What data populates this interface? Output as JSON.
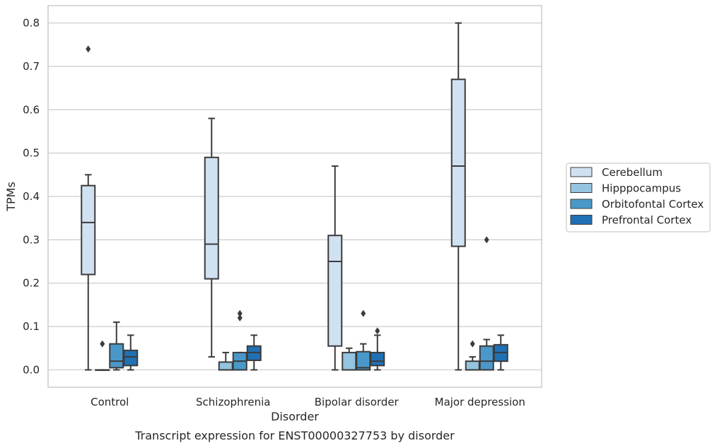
{
  "chart_data": {
    "type": "box",
    "title": "",
    "caption": "Transcript expression for ENST00000327753 by disorder",
    "xlabel": "Disorder",
    "ylabel": "TPMs",
    "ylim": [
      -0.04,
      0.84
    ],
    "yticks": [
      "0.0",
      "0.1",
      "0.2",
      "0.3",
      "0.4",
      "0.5",
      "0.6",
      "0.7",
      "0.8"
    ],
    "categories": [
      "Control",
      "Schizophrenia",
      "Bipolar disorder",
      "Major depression"
    ],
    "grid": "horizontal",
    "legend_position": "right-center",
    "series": [
      {
        "name": "Cerebellum",
        "color": "#d0e1f2",
        "boxes": [
          {
            "min": 0.0,
            "q1": 0.22,
            "median": 0.34,
            "q3": 0.425,
            "max": 0.45,
            "outliers": [
              0.74
            ]
          },
          {
            "min": 0.03,
            "q1": 0.21,
            "median": 0.29,
            "q3": 0.49,
            "max": 0.58,
            "outliers": []
          },
          {
            "min": 0.0,
            "q1": 0.055,
            "median": 0.25,
            "q3": 0.31,
            "max": 0.47,
            "outliers": []
          },
          {
            "min": 0.0,
            "q1": 0.285,
            "median": 0.47,
            "q3": 0.67,
            "max": 0.8,
            "outliers": []
          }
        ]
      },
      {
        "name": "Hipppocampus",
        "color": "#94c4df",
        "boxes": [
          {
            "min": 0.0,
            "q1": 0.0,
            "median": 0.0,
            "q3": 0.0,
            "max": 0.0,
            "outliers": [
              0.06
            ]
          },
          {
            "min": 0.0,
            "q1": 0.0,
            "median": 0.0,
            "q3": 0.018,
            "max": 0.04,
            "outliers": []
          },
          {
            "min": 0.0,
            "q1": 0.0,
            "median": 0.0,
            "q3": 0.04,
            "max": 0.05,
            "outliers": []
          },
          {
            "min": 0.0,
            "q1": 0.0,
            "median": 0.0,
            "q3": 0.02,
            "max": 0.03,
            "outliers": [
              0.06
            ]
          }
        ]
      },
      {
        "name": "Orbitofontal Cortex",
        "color": "#4a98c9",
        "boxes": [
          {
            "min": 0.0,
            "q1": 0.005,
            "median": 0.02,
            "q3": 0.06,
            "max": 0.11,
            "outliers": []
          },
          {
            "min": 0.0,
            "q1": 0.0,
            "median": 0.02,
            "q3": 0.04,
            "max": 0.04,
            "outliers": [
              0.12,
              0.13
            ]
          },
          {
            "min": 0.0,
            "q1": 0.0,
            "median": 0.005,
            "q3": 0.042,
            "max": 0.06,
            "outliers": [
              0.13
            ]
          },
          {
            "min": 0.0,
            "q1": 0.0,
            "median": 0.02,
            "q3": 0.055,
            "max": 0.07,
            "outliers": [
              0.3
            ]
          }
        ]
      },
      {
        "name": "Prefrontal Cortex",
        "color": "#2070b4",
        "boxes": [
          {
            "min": 0.0,
            "q1": 0.01,
            "median": 0.03,
            "q3": 0.045,
            "max": 0.08,
            "outliers": []
          },
          {
            "min": 0.0,
            "q1": 0.022,
            "median": 0.04,
            "q3": 0.055,
            "max": 0.08,
            "outliers": []
          },
          {
            "min": 0.0,
            "q1": 0.01,
            "median": 0.02,
            "q3": 0.04,
            "max": 0.08,
            "outliers": [
              0.09
            ]
          },
          {
            "min": 0.0,
            "q1": 0.02,
            "median": 0.04,
            "q3": 0.058,
            "max": 0.08,
            "outliers": []
          }
        ]
      }
    ]
  }
}
